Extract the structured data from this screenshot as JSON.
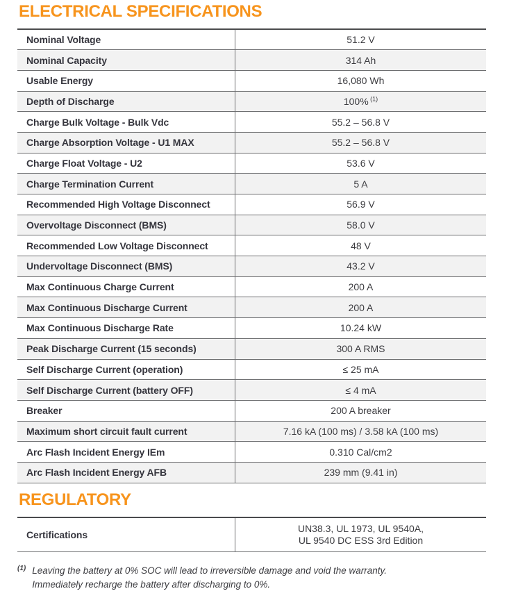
{
  "theme": {
    "accent_color": "#F7941D",
    "stripe_color": "#F2F2F2",
    "line_color": "#6D6E70"
  },
  "sections": {
    "electrical": {
      "title": "ELECTRICAL SPECIFICATIONS",
      "rows": [
        {
          "label": "Nominal Voltage",
          "value": "51.2 V"
        },
        {
          "label": "Nominal Capacity",
          "value": "314 Ah"
        },
        {
          "label": "Usable Energy",
          "value": "16,080 Wh"
        },
        {
          "label": "Depth of Discharge",
          "value": "100%",
          "superscript": "(1)"
        },
        {
          "label": "Charge Bulk Voltage - Bulk Vdc",
          "value": "55.2 – 56.8 V"
        },
        {
          "label": "Charge Absorption Voltage - U1 MAX",
          "value": "55.2 – 56.8 V"
        },
        {
          "label": "Charge Float Voltage - U2",
          "value": "53.6 V"
        },
        {
          "label": "Charge Termination Current",
          "value": "5 A"
        },
        {
          "label": "Recommended High Voltage Disconnect",
          "value": "56.9 V"
        },
        {
          "label": "Overvoltage Disconnect (BMS)",
          "value": "58.0 V"
        },
        {
          "label": "Recommended Low Voltage Disconnect",
          "value": "48 V"
        },
        {
          "label": "Undervoltage Disconnect (BMS)",
          "value": "43.2 V"
        },
        {
          "label": "Max Continuous Charge Current",
          "value": "200 A"
        },
        {
          "label": "Max Continuous Discharge Current",
          "value": "200 A"
        },
        {
          "label": "Max Continuous Discharge Rate",
          "value": "10.24 kW"
        },
        {
          "label": "Peak Discharge Current (15 seconds)",
          "value": "300 A RMS"
        },
        {
          "label": "Self Discharge Current (operation)",
          "value": "≤ 25 mA"
        },
        {
          "label": "Self Discharge Current (battery OFF)",
          "value": "≤ 4 mA"
        },
        {
          "label": "Breaker",
          "value": "200 A breaker"
        },
        {
          "label": "Maximum short circuit fault current",
          "value": "7.16 kA (100 ms) / 3.58 kA (100 ms)"
        },
        {
          "label": "Arc Flash Incident Energy IEm",
          "value": "0.310 Cal/cm2"
        },
        {
          "label": "Arc Flash Incident Energy AFB",
          "value": "239 mm (9.41 in)"
        }
      ]
    },
    "regulatory": {
      "title": "REGULATORY",
      "rows": [
        {
          "label": "Certifications",
          "value_lines": [
            "UN38.3, UL 1973, UL 9540A,",
            "UL 9540 DC ESS 3rd Edition"
          ]
        }
      ]
    }
  },
  "footnote": {
    "marker": "(1)",
    "lines": [
      "Leaving the battery at 0% SOC will lead to irreversible damage and void the warranty.",
      "Immediately recharge the battery after discharging to 0%."
    ]
  }
}
